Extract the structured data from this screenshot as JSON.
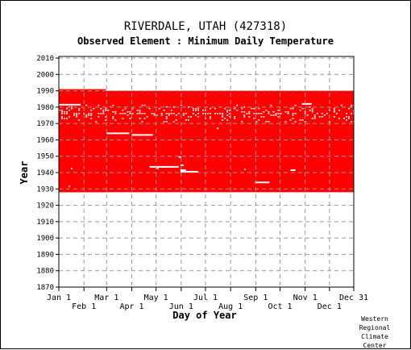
{
  "header": {
    "station_title": "RIVERDALE, UTAH   (427318)",
    "element_title": "Observed Element : Minimum Daily Temperature"
  },
  "credit": [
    "Western",
    "Regional",
    "Climate",
    "Center"
  ],
  "colors": {
    "data_fill": "#ff0000",
    "gap": "#ffffff",
    "grid": "#999999",
    "axis": "#000000",
    "background": "#ffffff"
  },
  "chart_data": {
    "type": "heatmap",
    "title": "RIVERDALE, UTAH   (427318)",
    "subtitle": "Observed Element : Minimum Daily Temperature",
    "xlabel": "Day of Year",
    "ylabel": "Year",
    "xlim": [
      1,
      365
    ],
    "ylim": [
      1870,
      2011
    ],
    "x_ticks_top_row": [
      {
        "label": "Jan 1",
        "day": 1
      },
      {
        "label": "Mar 1",
        "day": 60
      },
      {
        "label": "May 1",
        "day": 121
      },
      {
        "label": "Jul 1",
        "day": 182
      },
      {
        "label": "Sep 1",
        "day": 244
      },
      {
        "label": "Nov 1",
        "day": 305
      },
      {
        "label": "Dec 31",
        "day": 365
      }
    ],
    "x_ticks_bottom_row": [
      {
        "label": "Feb 1",
        "day": 32
      },
      {
        "label": "Apr 1",
        "day": 91
      },
      {
        "label": "Jun 1",
        "day": 152
      },
      {
        "label": "Aug 1",
        "day": 213
      },
      {
        "label": "Oct 1",
        "day": 274
      },
      {
        "label": "Dec 1",
        "day": 335
      }
    ],
    "y_ticks": [
      1870,
      1880,
      1890,
      1900,
      1910,
      1920,
      1930,
      1940,
      1950,
      1960,
      1970,
      1980,
      1990,
      2000,
      2010
    ],
    "grid": true,
    "record_blocks": [
      {
        "start_day": 1,
        "end_day": 365,
        "start_year": 1928,
        "end_year": 1990
      },
      {
        "start_day": 1,
        "end_day": 59,
        "start_year": 1928,
        "end_year": 1991
      }
    ],
    "missing_segments": [
      {
        "start_day": 1,
        "end_day": 28,
        "year": 1981.5
      },
      {
        "start_day": 60,
        "end_day": 88,
        "year": 1964
      },
      {
        "start_day": 91,
        "end_day": 117,
        "year": 1963
      },
      {
        "start_day": 113,
        "end_day": 133,
        "year": 1943.5
      },
      {
        "start_day": 127,
        "end_day": 149,
        "year": 1943.5
      },
      {
        "start_day": 151,
        "end_day": 173,
        "year": 1940.5
      },
      {
        "start_day": 151,
        "end_day": 158,
        "year": 1941.5
      },
      {
        "start_day": 243,
        "end_day": 261,
        "year": 1934
      },
      {
        "start_day": 287,
        "end_day": 293,
        "year": 1941.5
      },
      {
        "start_day": 301,
        "end_day": 313,
        "year": 1982
      },
      {
        "start_day": 149,
        "end_day": 152,
        "year": 1949.5
      },
      {
        "start_day": 151,
        "end_day": 155,
        "year": 1944.5
      },
      {
        "start_day": 13,
        "end_day": 14,
        "year": 1931.5
      },
      {
        "start_day": 16,
        "end_day": 17,
        "year": 1942.5
      },
      {
        "start_day": 122,
        "end_day": 124,
        "year": 1942.5
      },
      {
        "start_day": 230,
        "end_day": 231,
        "year": 1942
      },
      {
        "start_day": 196,
        "end_day": 198,
        "year": 1967
      }
    ],
    "scattered_missing": {
      "start_day": 1,
      "end_day": 365,
      "start_year": 1971,
      "end_year": 1981
    }
  }
}
